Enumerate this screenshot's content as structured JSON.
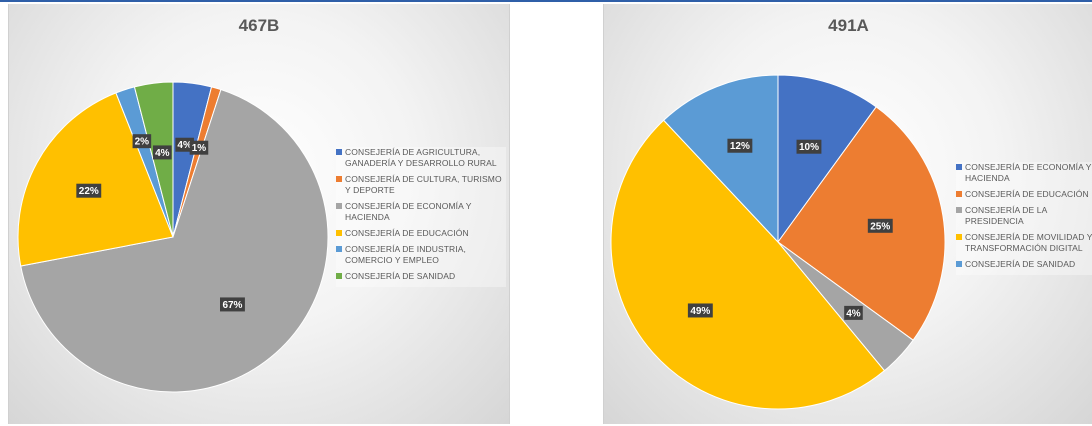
{
  "chart_data": [
    {
      "type": "pie",
      "title": "467B",
      "labels": [
        "CONSEJERÍA DE AGRICULTURA, GANADERÍA Y DESARROLLO RURAL",
        "CONSEJERÍA DE CULTURA, TURISMO Y DEPORTE",
        "CONSEJERÍA DE ECONOMÍA Y HACIENDA",
        "CONSEJERÍA DE EDUCACIÓN",
        "CONSEJERÍA DE INDUSTRIA, COMERCIO Y EMPLEO",
        "CONSEJERÍA DE SANIDAD"
      ],
      "values": [
        4,
        1,
        67,
        22,
        2,
        4
      ],
      "data_labels": [
        "4%",
        "1%",
        "67%",
        "22%",
        "2%",
        "4%"
      ],
      "colors": [
        "#4472C4",
        "#ED7D31",
        "#A5A5A5",
        "#FFC000",
        "#5B9BD5",
        "#70AD47"
      ],
      "legend_position": "right"
    },
    {
      "type": "pie",
      "title": "491A",
      "labels": [
        "CONSEJERÍA DE ECONOMÍA Y HACIENDA",
        "CONSEJERÍA DE EDUCACIÓN",
        "CONSEJERÍA DE LA PRESIDENCIA",
        "CONSEJERÍA DE MOVILIDAD Y TRANSFORMACIÓN DIGITAL",
        "CONSEJERÍA DE SANIDAD"
      ],
      "values": [
        10,
        25,
        4,
        49,
        12
      ],
      "data_labels": [
        "10%",
        "25%",
        "4%",
        "49%",
        "12%"
      ],
      "colors": [
        "#4472C4",
        "#ED7D31",
        "#A5A5A5",
        "#FFC000",
        "#5B9BD5"
      ],
      "legend_position": "right"
    }
  ]
}
